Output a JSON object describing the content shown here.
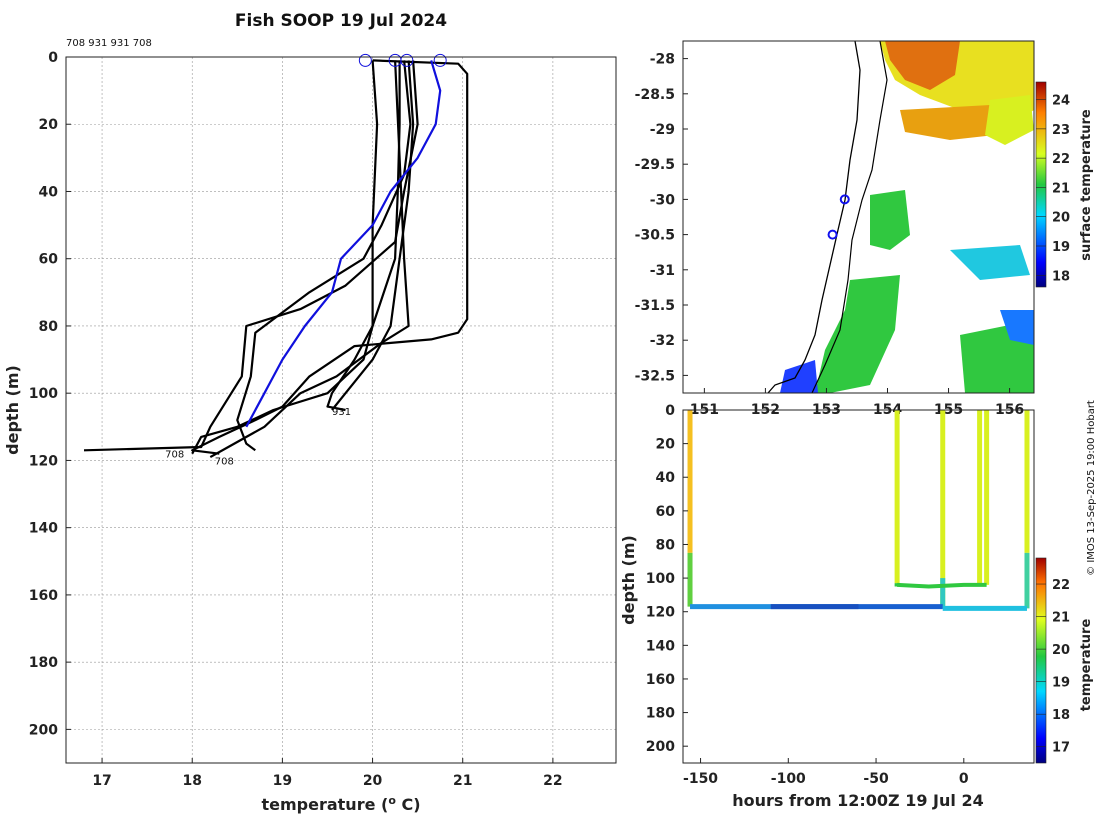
{
  "chart_data": [
    {
      "id": "profiles",
      "type": "line",
      "title": "Fish SOOP 19 Jul 2024",
      "annotation": "708 931 931 708",
      "xlabel": "temperature (",
      "xlabel_sup": "o",
      "xlabel_end": " C)",
      "ylabel": "depth (m)",
      "xlim": [
        16.6,
        22.7
      ],
      "ylim": [
        210,
        0
      ],
      "xticks": [
        17,
        18,
        19,
        20,
        21,
        22
      ],
      "yticks": [
        0,
        20,
        40,
        60,
        80,
        100,
        120,
        140,
        160,
        180,
        200
      ],
      "grid": true,
      "bottom_labels": [
        "931",
        "708",
        "708"
      ],
      "series": [
        {
          "name": "profile-1",
          "color": "#000000",
          "points": [
            [
              20.3,
              1
            ],
            [
              20.3,
              20
            ],
            [
              20.28,
              40
            ],
            [
              20.25,
              60
            ],
            [
              20.0,
              80
            ],
            [
              19.8,
              90
            ],
            [
              19.55,
              100
            ],
            [
              19.5,
              104
            ],
            [
              19.7,
              105
            ]
          ]
        },
        {
          "name": "profile-2",
          "color": "#000000",
          "points": [
            [
              20.4,
              1
            ],
            [
              20.45,
              20
            ],
            [
              20.4,
              40
            ],
            [
              20.3,
              60
            ],
            [
              20.2,
              80
            ],
            [
              20.0,
              90
            ],
            [
              19.7,
              100
            ],
            [
              19.55,
              105
            ]
          ]
        },
        {
          "name": "profile-3",
          "color": "#000000",
          "points": [
            [
              20.35,
              1
            ],
            [
              20.42,
              20
            ],
            [
              20.35,
              35
            ],
            [
              20.1,
              50
            ],
            [
              19.9,
              60
            ],
            [
              19.3,
              70
            ],
            [
              18.7,
              82
            ],
            [
              18.65,
              95
            ],
            [
              18.5,
              108
            ],
            [
              18.6,
              115
            ],
            [
              18.7,
              117
            ]
          ]
        },
        {
          "name": "profile-4",
          "color": "#000000",
          "points": [
            [
              20.45,
              1
            ],
            [
              20.5,
              20
            ],
            [
              20.35,
              40
            ],
            [
              20.25,
              55
            ],
            [
              19.7,
              68
            ],
            [
              19.2,
              75
            ],
            [
              18.6,
              80
            ],
            [
              18.55,
              95
            ],
            [
              18.2,
              110
            ],
            [
              18.1,
              116
            ],
            [
              16.8,
              117
            ]
          ]
        },
        {
          "name": "profile-5",
          "color": "#000000",
          "points": [
            [
              20.0,
              1
            ],
            [
              20.95,
              2
            ],
            [
              21.05,
              5
            ],
            [
              21.05,
              40
            ],
            [
              21.05,
              78
            ],
            [
              20.95,
              82
            ],
            [
              20.65,
              84
            ],
            [
              19.8,
              86
            ],
            [
              19.3,
              95
            ],
            [
              19.0,
              104
            ],
            [
              18.7,
              108
            ],
            [
              18.3,
              113
            ],
            [
              18.0,
              117
            ],
            [
              18.3,
              118
            ]
          ]
        },
        {
          "name": "profile-6",
          "color": "#000000",
          "points": [
            [
              20.0,
              1
            ],
            [
              20.05,
              20
            ],
            [
              20.0,
              50
            ],
            [
              20.0,
              80
            ],
            [
              19.9,
              90
            ],
            [
              19.5,
              100
            ],
            [
              18.9,
              105
            ],
            [
              18.5,
              110
            ],
            [
              18.1,
              113
            ],
            [
              18.0,
              118
            ]
          ]
        },
        {
          "name": "profile-7",
          "color": "#000000",
          "points": [
            [
              20.25,
              1
            ],
            [
              20.3,
              30
            ],
            [
              20.35,
              60
            ],
            [
              20.4,
              80
            ],
            [
              20.1,
              85
            ],
            [
              19.6,
              95
            ],
            [
              19.2,
              100
            ],
            [
              18.8,
              110
            ],
            [
              18.4,
              116
            ],
            [
              18.2,
              119
            ]
          ]
        },
        {
          "name": "mean-profile",
          "color": "#1010dd",
          "points": [
            [
              20.65,
              1
            ],
            [
              20.75,
              10
            ],
            [
              20.7,
              20
            ],
            [
              20.5,
              30
            ],
            [
              20.2,
              40
            ],
            [
              20.0,
              50
            ],
            [
              19.65,
              60
            ],
            [
              19.6,
              65
            ],
            [
              19.55,
              70
            ],
            [
              19.25,
              80
            ],
            [
              19.0,
              90
            ],
            [
              18.8,
              100
            ],
            [
              18.6,
              110
            ]
          ]
        }
      ],
      "markers": [
        [
          19.92,
          1
        ],
        [
          20.25,
          1
        ],
        [
          20.38,
          1
        ],
        [
          20.75,
          1
        ]
      ]
    },
    {
      "id": "map",
      "type": "heatmap",
      "colorbar_label": "surface temperature",
      "colorbar_range": [
        17.6,
        24.6
      ],
      "colorbar_ticks": [
        18,
        19,
        20,
        21,
        22,
        23,
        24
      ],
      "xlim": [
        150.65,
        156.4
      ],
      "ylim": [
        -32.75,
        -27.75
      ],
      "xticks": [
        151,
        152,
        153,
        154,
        155,
        156
      ],
      "xtick_labels": [
        "151",
        "152",
        "153",
        "154",
        "155",
        "156"
      ],
      "yticks": [
        -28,
        -28.5,
        -29,
        -29.5,
        -30,
        -30.5,
        -31,
        -31.5,
        -32,
        -32.5
      ],
      "stations": [
        [
          153.3,
          -30.0
        ],
        [
          153.1,
          -30.5
        ]
      ]
    },
    {
      "id": "section",
      "type": "scatter",
      "xlabel": "hours from 12:00Z 19 Jul 24",
      "ylabel": "depth (m)",
      "colorbar_label": "temperature",
      "colorbar_range": [
        16.5,
        22.8
      ],
      "colorbar_ticks": [
        17,
        18,
        19,
        20,
        21,
        22
      ],
      "xlim": [
        -160,
        40
      ],
      "ylim": [
        210,
        0
      ],
      "xticks": [
        -150,
        -100,
        -50,
        0
      ],
      "yticks": [
        0,
        20,
        40,
        60,
        80,
        100,
        120,
        140,
        160,
        180,
        200
      ]
    }
  ],
  "footer": {
    "credit": "© IMOS 13-Sep-2025 19:00 Hobart"
  },
  "colors": {
    "profile": "#000000",
    "mean": "#1010dd",
    "axis": "#222222"
  }
}
